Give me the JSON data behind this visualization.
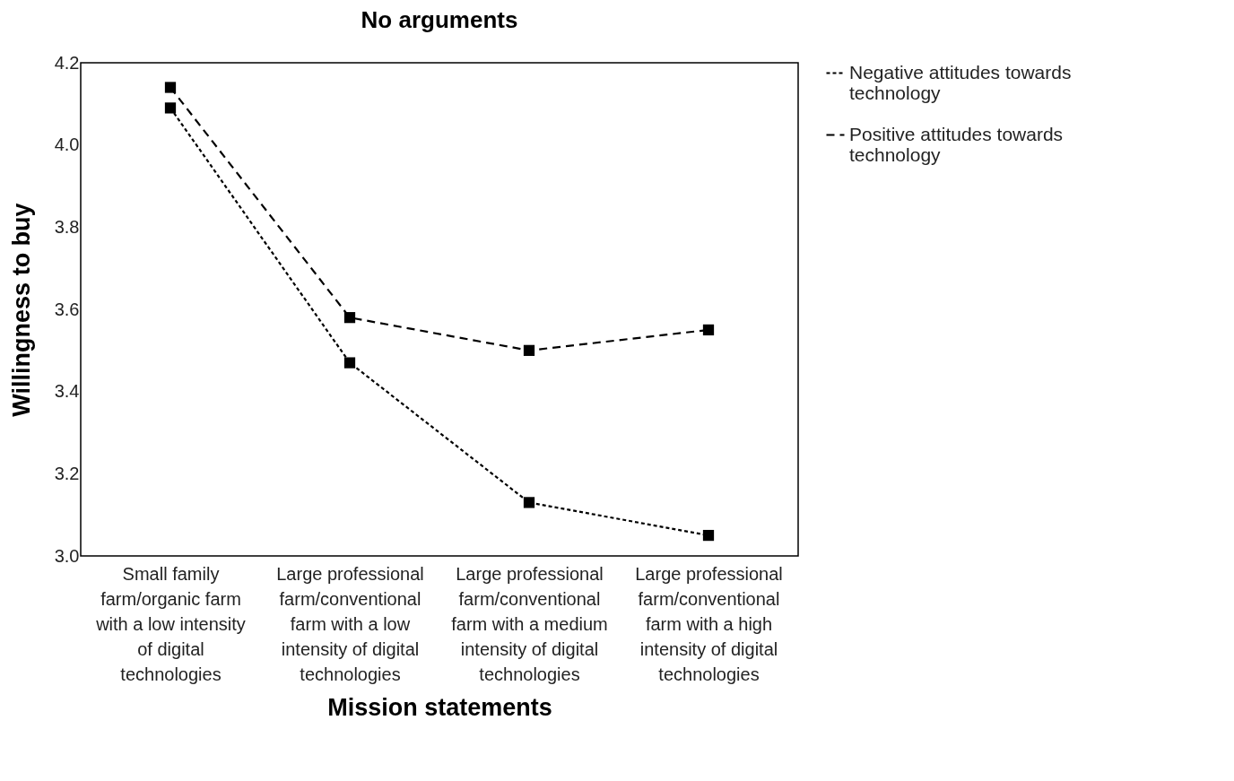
{
  "chart_data": {
    "type": "line",
    "title": "No arguments",
    "xlabel": "Mission statements",
    "ylabel": "Willingness to buy",
    "categories": [
      "Small family farm/organic farm with a low intensity of digital technologies",
      "Large professional farm/conventional farm with a low intensity of digital technologies",
      "Large professional farm/conventional farm with a medium intensity of digital technologies",
      "Large professional farm/conventional farm with a high intensity of digital technologies"
    ],
    "series": [
      {
        "name": "Negative attitudes towards technology",
        "color": "#000000",
        "line_style": "dotted",
        "values": [
          4.09,
          3.47,
          3.13,
          3.05
        ]
      },
      {
        "name": "Positive attitudes towards technology",
        "color": "#000000",
        "line_style": "dashed",
        "values": [
          4.14,
          3.58,
          3.5,
          3.55
        ]
      }
    ],
    "ylim": [
      3.0,
      4.2
    ],
    "yticks": [
      {
        "value": 3.0,
        "label": "3.0"
      },
      {
        "value": 3.2,
        "label": "3.2"
      },
      {
        "value": 3.4,
        "label": "3.4"
      },
      {
        "value": 3.6,
        "label": "3.6"
      },
      {
        "value": 3.8,
        "label": "3.8"
      },
      {
        "value": 4.0,
        "label": "4.0"
      },
      {
        "value": 4.2,
        "label": "4.2"
      }
    ],
    "grid": false,
    "legend": "right",
    "marker": "square"
  }
}
